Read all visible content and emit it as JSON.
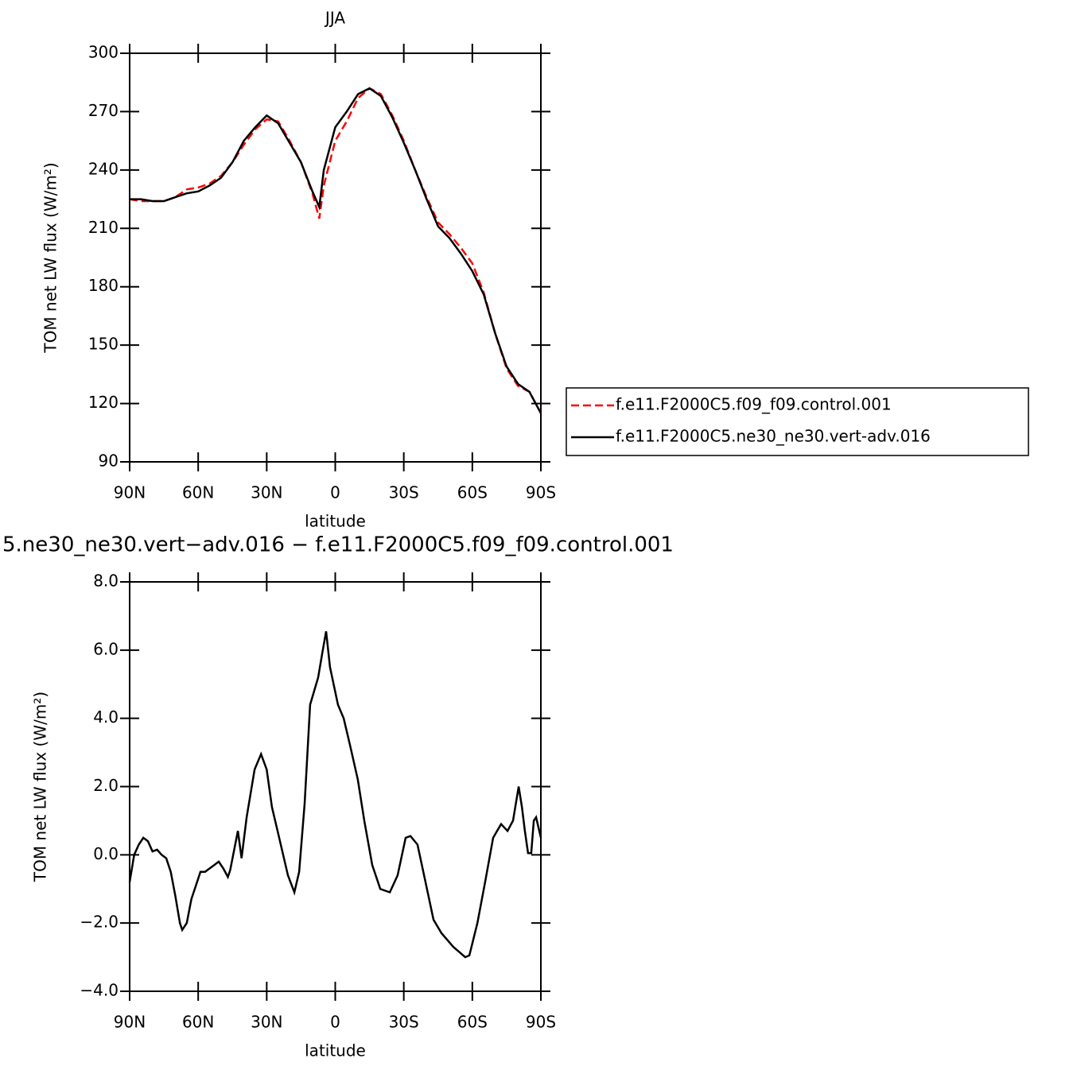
{
  "chart_data": [
    {
      "type": "line",
      "title": "JJA",
      "x_label": "latitude",
      "y_label": "TOM net LW flux (W/m²)",
      "x": [
        90,
        85,
        80,
        75,
        70,
        65,
        60,
        55,
        50,
        45,
        40,
        35,
        30,
        25,
        20,
        15,
        10,
        7,
        5,
        0,
        -5,
        -10,
        -15,
        -20,
        -25,
        -30,
        -35,
        -40,
        -45,
        -50,
        -55,
        -60,
        -65,
        -70,
        -75,
        -80,
        -85,
        -90
      ],
      "series": [
        {
          "name": "f.e11.F2000C5.f09_f09.control.001",
          "color": "#ff0000",
          "line_style": "dashed",
          "values": [
            225,
            224,
            224,
            224,
            226,
            230,
            231,
            233,
            237,
            244,
            253,
            261,
            266,
            265,
            255,
            244,
            228,
            215,
            232,
            255,
            265,
            277,
            282,
            279,
            268,
            255,
            240,
            226,
            213,
            207,
            200,
            192,
            177,
            156,
            138,
            129,
            126,
            115
          ]
        },
        {
          "name": "f.e11.F2000C5.ne30_ne30.vert-adv.016",
          "color": "#000000",
          "line_style": "solid",
          "values": [
            225,
            225,
            224,
            224,
            226,
            228,
            229,
            232,
            236,
            244,
            255,
            262,
            268,
            264,
            254,
            244,
            229,
            221,
            240,
            262,
            270,
            279,
            282,
            278,
            267,
            254,
            240,
            225,
            211,
            205,
            197,
            188,
            176,
            156,
            139,
            130,
            126,
            115
          ]
        }
      ],
      "xlim": [
        90,
        -90
      ],
      "xticks": [
        {
          "value": 90,
          "label": "90N"
        },
        {
          "value": 60,
          "label": "60N"
        },
        {
          "value": 30,
          "label": "30N"
        },
        0,
        {
          "value": -30,
          "label": "30S"
        },
        {
          "value": -60,
          "label": "60S"
        },
        {
          "value": -90,
          "label": "90S"
        }
      ],
      "ylim": [
        90,
        300
      ],
      "yticks": [
        90,
        120,
        150,
        180,
        210,
        240,
        270,
        300
      ],
      "legend_position": "right",
      "grid": false
    },
    {
      "type": "line",
      "title": "5.ne30_ne30.vert−adv.016 − f.e11.F2000C5.f09_f09.control.001",
      "x_label": "latitude",
      "y_label": "TOM net LW flux (W/m²)",
      "x": [
        90,
        88,
        86,
        84,
        82,
        80,
        78,
        76,
        74,
        72,
        70,
        68,
        67,
        65,
        63,
        61,
        59,
        57,
        55,
        53,
        51,
        49,
        47,
        46,
        42.6,
        41,
        38.8,
        35.3,
        32.5,
        30,
        27.7,
        24.9,
        20.7,
        17.9,
        15.8,
        13.4,
        11,
        7.5,
        5.7,
        4,
        2.3,
        -1.2,
        -3.7,
        -6.5,
        -9.9,
        -12.7,
        -16.2,
        -19.7,
        -23.9,
        -27.3,
        -30.8,
        -32.9,
        -36,
        -39.5,
        -43,
        -46.5,
        -51.7,
        -56.9,
        -58.7,
        -62.2,
        -65.6,
        -69.1,
        -72.6,
        -75.4,
        -77.8,
        -80.3,
        -81.7,
        -83,
        -84.4,
        -85.8,
        -86.9,
        -87.9,
        -90
      ],
      "color": "#000000",
      "values": [
        -0.8,
        0.0,
        0.3,
        0.5,
        0.4,
        0.1,
        0.15,
        0.0,
        -0.1,
        -0.5,
        -1.2,
        -2.0,
        -2.2,
        -2.0,
        -1.3,
        -0.9,
        -0.5,
        -0.5,
        -0.4,
        -0.3,
        -0.2,
        -0.4,
        -0.65,
        -0.45,
        0.7,
        -0.1,
        1.1,
        2.5,
        2.95,
        2.5,
        1.4,
        0.6,
        -0.6,
        -1.1,
        -0.5,
        1.5,
        4.4,
        5.2,
        5.9,
        6.55,
        5.5,
        4.4,
        4.0,
        3.2,
        2.2,
        1.0,
        -0.3,
        -1.0,
        -1.1,
        -0.6,
        0.5,
        0.55,
        0.3,
        -0.8,
        -1.9,
        -2.3,
        -2.7,
        -3.0,
        -2.95,
        -2.0,
        -0.8,
        0.5,
        0.9,
        0.7,
        1.0,
        2.0,
        1.4,
        0.7,
        0.05,
        0.05,
        1.0,
        1.1,
        0.5
      ],
      "xlim": [
        90,
        -90
      ],
      "xticks": [
        {
          "value": 90,
          "label": "90N"
        },
        {
          "value": 60,
          "label": "60N"
        },
        {
          "value": 30,
          "label": "30N"
        },
        0,
        {
          "value": -30,
          "label": "30S"
        },
        {
          "value": -60,
          "label": "60S"
        },
        {
          "value": -90,
          "label": "90S"
        }
      ],
      "ylim": [
        -4,
        8
      ],
      "yticks": [
        {
          "value": -4,
          "label": "−4.0"
        },
        {
          "value": -2,
          "label": "−2.0"
        },
        {
          "value": 0,
          "label": "0.0"
        },
        {
          "value": 2,
          "label": "2.0"
        },
        {
          "value": 4,
          "label": "4.0"
        },
        {
          "value": 6,
          "label": "6.0"
        },
        {
          "value": 8,
          "label": "8.0"
        }
      ],
      "grid": false
    }
  ]
}
